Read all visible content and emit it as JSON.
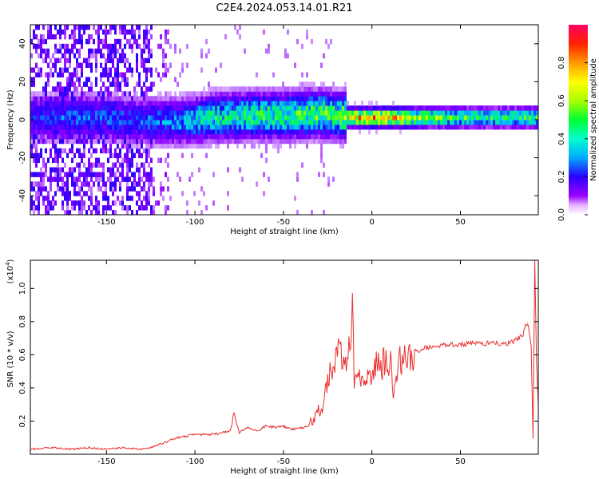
{
  "figure_title": "C2E4.2024.053.14.01.R21",
  "chart_data": [
    {
      "type": "heatmap",
      "title": "",
      "xlabel": "Height of straight line (km)",
      "ylabel": "Frequency (Hz)",
      "xlim": [
        -193,
        94
      ],
      "ylim": [
        -50,
        50
      ],
      "xticks": [
        -150,
        -100,
        -50,
        0,
        50
      ],
      "yticks": [
        -40,
        -20,
        0,
        20,
        40
      ],
      "grid": false,
      "colorbar": {
        "label": "Normalized spectral amplitude",
        "range": [
          0,
          1
        ],
        "ticks": [
          0.0,
          0.2,
          0.4,
          0.6,
          0.8
        ],
        "colormap": [
          "#ffffff",
          "#8a00ff",
          "#2200ff",
          "#00ccff",
          "#00ff44",
          "#aaff00",
          "#ffff00",
          "#ff8800",
          "#ff0000",
          "#ff0066"
        ]
      },
      "ridge": {
        "description": "spectral energy concentrated near 0 Hz; broad noise for heights below about -120 km",
        "x": [
          -193,
          -175,
          -150,
          -130,
          -110,
          -90,
          -70,
          -50,
          -30,
          -20,
          -10,
          0,
          10,
          30,
          50,
          70,
          94
        ],
        "center_hz": [
          0,
          0,
          0,
          -2,
          -2,
          0,
          1,
          1,
          2,
          1,
          0,
          0,
          0,
          0,
          0,
          0,
          0
        ],
        "amplitude": [
          0.25,
          0.3,
          0.3,
          0.3,
          0.35,
          0.45,
          0.5,
          0.5,
          0.55,
          0.5,
          0.75,
          0.9,
          0.8,
          0.6,
          0.55,
          0.5,
          0.55
        ]
      }
    },
    {
      "type": "line",
      "title": "",
      "xlabel": "Height of straight line (km)",
      "ylabel": "SNR (10 * v/v)",
      "y_multiplier_label": "(x10",
      "y_multiplier_exp": "4",
      "y_multiplier_suffix": ")",
      "xlim": [
        -193,
        94
      ],
      "ylim": [
        0,
        1.17
      ],
      "xticks": [
        -150,
        -100,
        -50,
        0,
        50
      ],
      "yticks": [
        0.2,
        0.4,
        0.6,
        0.8,
        1.0
      ],
      "grid": false,
      "color": "#e8302e",
      "x": [
        -193,
        -180,
        -170,
        -160,
        -150,
        -140,
        -130,
        -125,
        -120,
        -115,
        -110,
        -105,
        -100,
        -95,
        -90,
        -85,
        -80,
        -78,
        -75,
        -70,
        -65,
        -60,
        -55,
        -50,
        -45,
        -40,
        -36,
        -32,
        -28,
        -25,
        -22,
        -20,
        -18,
        -16,
        -14,
        -12,
        -11,
        -10,
        -8,
        -5,
        -2,
        0,
        2,
        5,
        8,
        10,
        11,
        12,
        15,
        18,
        20,
        25,
        30,
        35,
        40,
        50,
        60,
        70,
        75,
        80,
        85,
        88,
        90,
        91,
        92,
        93,
        94
      ],
      "y": [
        0.03,
        0.04,
        0.03,
        0.04,
        0.03,
        0.04,
        0.03,
        0.04,
        0.06,
        0.08,
        0.1,
        0.11,
        0.12,
        0.12,
        0.12,
        0.13,
        0.14,
        0.25,
        0.13,
        0.16,
        0.14,
        0.17,
        0.16,
        0.17,
        0.15,
        0.16,
        0.17,
        0.22,
        0.3,
        0.45,
        0.55,
        0.58,
        0.62,
        0.55,
        0.62,
        0.68,
        0.92,
        0.45,
        0.48,
        0.42,
        0.45,
        0.52,
        0.55,
        0.5,
        0.58,
        0.45,
        0.68,
        0.3,
        0.55,
        0.6,
        0.58,
        0.62,
        0.64,
        0.65,
        0.66,
        0.66,
        0.67,
        0.67,
        0.66,
        0.68,
        0.72,
        0.8,
        0.65,
        0.1,
        1.17,
        0.55,
        0.3
      ]
    }
  ]
}
